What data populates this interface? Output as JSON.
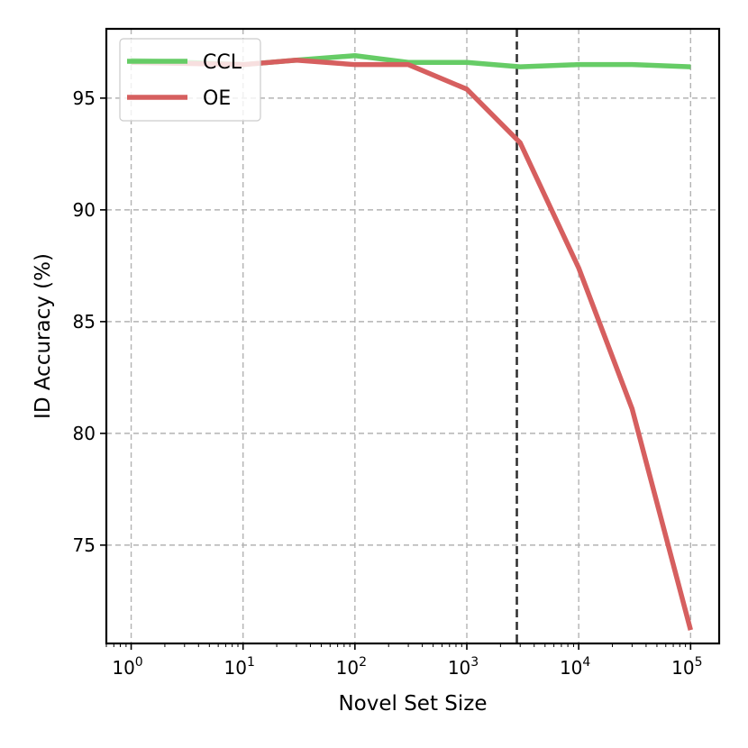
{
  "chart_data": {
    "type": "line",
    "title": "",
    "xlabel": "Novel Set Size",
    "ylabel": "ID Accuracy (%)",
    "x_scale": "log",
    "xlim": [
      0.6,
      180000
    ],
    "ylim": [
      70.6,
      98.1
    ],
    "x_ticks": [
      1,
      10,
      100,
      1000,
      10000,
      100000
    ],
    "x_tick_labels": [
      {
        "base": "10",
        "exp": "0"
      },
      {
        "base": "10",
        "exp": "1"
      },
      {
        "base": "10",
        "exp": "2"
      },
      {
        "base": "10",
        "exp": "3"
      },
      {
        "base": "10",
        "exp": "4"
      },
      {
        "base": "10",
        "exp": "5"
      }
    ],
    "y_ticks": [
      75,
      80,
      85,
      90,
      95
    ],
    "y_tick_labels": [
      "75",
      "80",
      "85",
      "90",
      "95"
    ],
    "grid": true,
    "legend_position": "top-left",
    "vertical_reference_line": {
      "x": 2800,
      "style": "dashed",
      "color": "#333333"
    },
    "series": [
      {
        "name": "CCL",
        "color": "#66cc66",
        "x": [
          1,
          10,
          30,
          100,
          300,
          1000,
          3000,
          10000,
          30000,
          100000
        ],
        "y": [
          96.7,
          96.5,
          96.7,
          96.9,
          96.6,
          96.6,
          96.4,
          96.5,
          96.5,
          96.4
        ]
      },
      {
        "name": "OE",
        "color": "#d65f5f",
        "x": [
          1,
          10,
          30,
          100,
          300,
          1000,
          3000,
          10000,
          30000,
          100000
        ],
        "y": [
          96.6,
          96.5,
          96.7,
          96.5,
          96.5,
          95.4,
          93.0,
          87.4,
          81.1,
          71.2
        ]
      }
    ]
  }
}
